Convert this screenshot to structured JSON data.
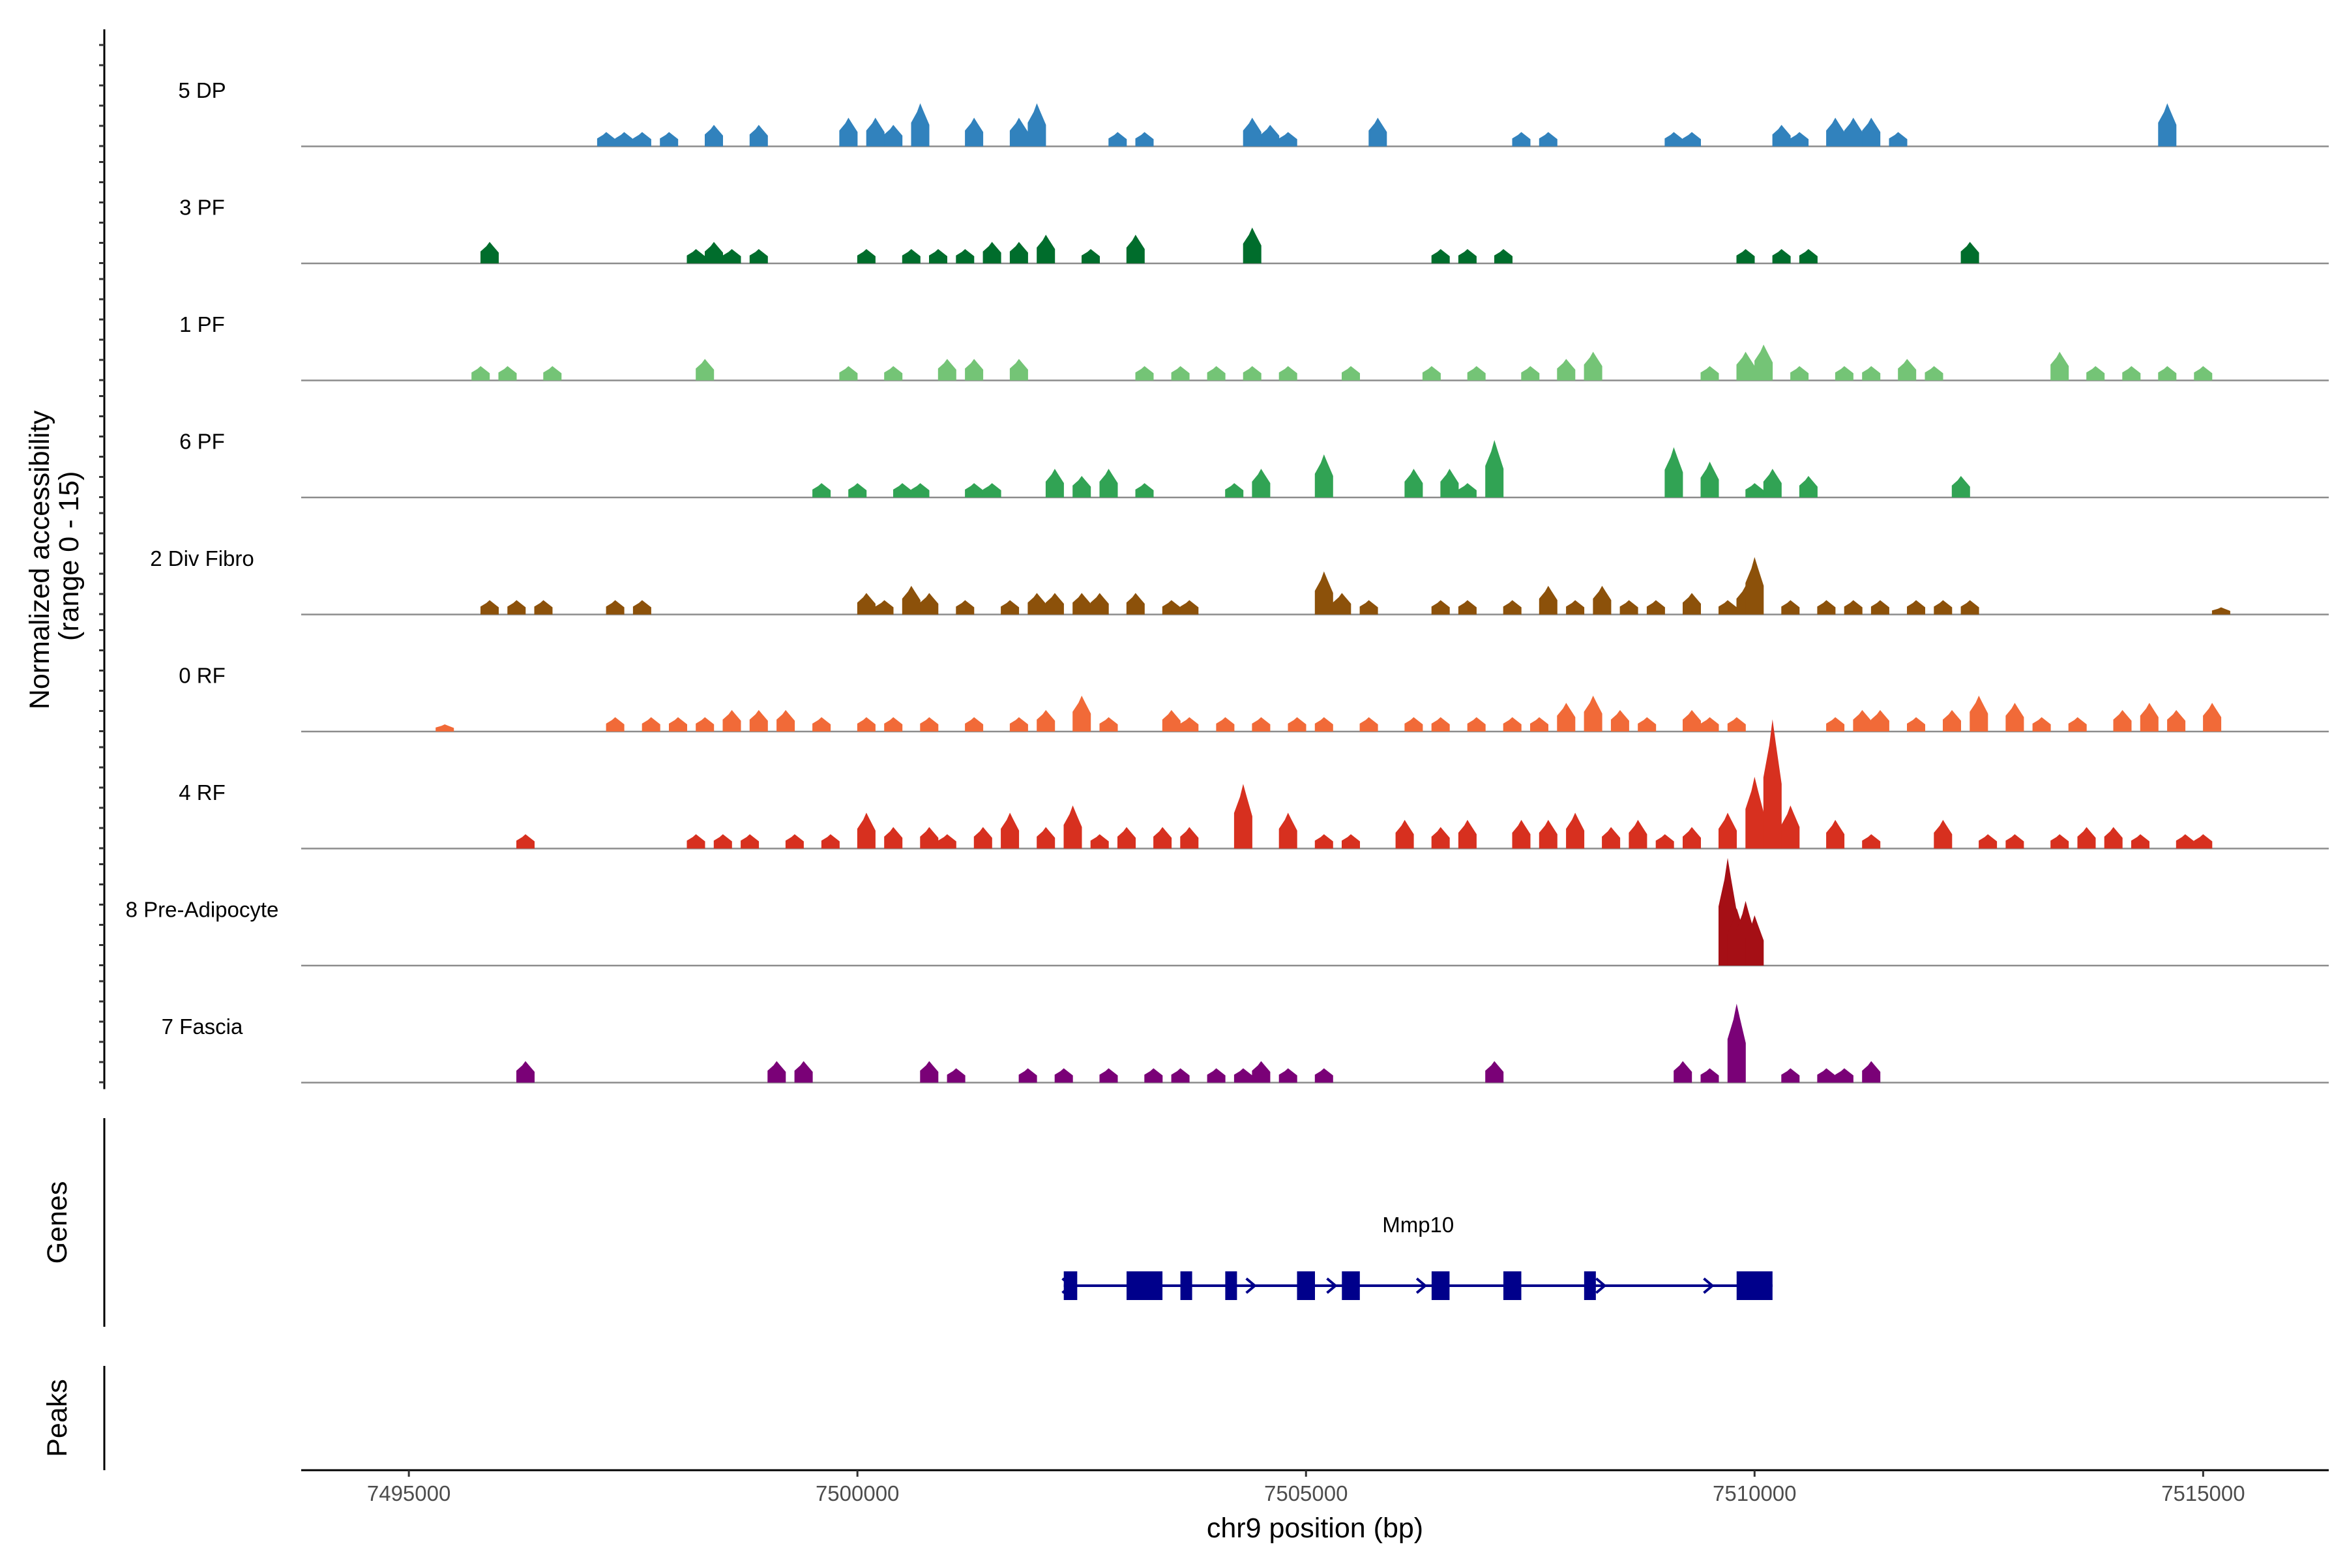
{
  "chart_data": {
    "type": "genome-coverage",
    "y_axis_title_line1": "Normalized accessibility",
    "y_axis_title_line2": "(range 0 - 15)",
    "x_axis_title": "chr9 position (bp)",
    "xlim": [
      7493800,
      7516400
    ],
    "x_ticks": [
      {
        "value": 7495000,
        "label": "7495000"
      },
      {
        "value": 7500000,
        "label": "7500000"
      },
      {
        "value": 7505000,
        "label": "7505000"
      },
      {
        "value": 7510000,
        "label": "7510000"
      },
      {
        "value": 7515000,
        "label": "7515000"
      }
    ],
    "track_max": 15,
    "tracks": [
      {
        "name": "5 DP",
        "color": "#3182bd",
        "peaks": [
          [
            7497200,
            2
          ],
          [
            7497400,
            2
          ],
          [
            7497600,
            2
          ],
          [
            7497900,
            2
          ],
          [
            7498400,
            3
          ],
          [
            7498900,
            3
          ],
          [
            7499900,
            4
          ],
          [
            7500200,
            4
          ],
          [
            7500400,
            3
          ],
          [
            7500700,
            6
          ],
          [
            7501300,
            4
          ],
          [
            7501800,
            4
          ],
          [
            7502000,
            6
          ],
          [
            7502900,
            2
          ],
          [
            7503200,
            2
          ],
          [
            7504400,
            4
          ],
          [
            7504600,
            3
          ],
          [
            7504800,
            2
          ],
          [
            7505800,
            4
          ],
          [
            7507400,
            2
          ],
          [
            7507700,
            2
          ],
          [
            7509100,
            2
          ],
          [
            7509300,
            2
          ],
          [
            7510300,
            3
          ],
          [
            7510500,
            2
          ],
          [
            7510900,
            4
          ],
          [
            7511100,
            4
          ],
          [
            7511300,
            4
          ],
          [
            7511600,
            2
          ],
          [
            7514600,
            6
          ]
        ]
      },
      {
        "name": "3 PF",
        "color": "#006d2c",
        "peaks": [
          [
            7495900,
            3
          ],
          [
            7498200,
            2
          ],
          [
            7498400,
            3
          ],
          [
            7498600,
            2
          ],
          [
            7498900,
            2
          ],
          [
            7500100,
            2
          ],
          [
            7500600,
            2
          ],
          [
            7500900,
            2
          ],
          [
            7501200,
            2
          ],
          [
            7501500,
            3
          ],
          [
            7501800,
            3
          ],
          [
            7502100,
            4
          ],
          [
            7502600,
            2
          ],
          [
            7503100,
            4
          ],
          [
            7504400,
            5
          ],
          [
            7506500,
            2
          ],
          [
            7506800,
            2
          ],
          [
            7507200,
            2
          ],
          [
            7509900,
            2
          ],
          [
            7510300,
            2
          ],
          [
            7510600,
            2
          ],
          [
            7512400,
            3
          ]
        ]
      },
      {
        "name": "1 PF",
        "color": "#74c476",
        "peaks": [
          [
            7495800,
            2
          ],
          [
            7496100,
            2
          ],
          [
            7496600,
            2
          ],
          [
            7498300,
            3
          ],
          [
            7499900,
            2
          ],
          [
            7500400,
            2
          ],
          [
            7501000,
            3
          ],
          [
            7501300,
            3
          ],
          [
            7501800,
            3
          ],
          [
            7503200,
            2
          ],
          [
            7503600,
            2
          ],
          [
            7504000,
            2
          ],
          [
            7504400,
            2
          ],
          [
            7504800,
            2
          ],
          [
            7505500,
            2
          ],
          [
            7506400,
            2
          ],
          [
            7506900,
            2
          ],
          [
            7507500,
            2
          ],
          [
            7507900,
            3
          ],
          [
            7508200,
            4
          ],
          [
            7509500,
            2
          ],
          [
            7509900,
            4
          ],
          [
            7510100,
            5
          ],
          [
            7510500,
            2
          ],
          [
            7511000,
            2
          ],
          [
            7511300,
            2
          ],
          [
            7511700,
            3
          ],
          [
            7512000,
            2
          ],
          [
            7513400,
            4
          ],
          [
            7513800,
            2
          ],
          [
            7514200,
            2
          ],
          [
            7514600,
            2
          ],
          [
            7515000,
            2
          ]
        ]
      },
      {
        "name": "6 PF",
        "color": "#31a354",
        "peaks": [
          [
            7499600,
            2
          ],
          [
            7500000,
            2
          ],
          [
            7500500,
            2
          ],
          [
            7500700,
            2
          ],
          [
            7501300,
            2
          ],
          [
            7501500,
            2
          ],
          [
            7502200,
            4
          ],
          [
            7502500,
            3
          ],
          [
            7502800,
            4
          ],
          [
            7503200,
            2
          ],
          [
            7504200,
            2
          ],
          [
            7504500,
            4
          ],
          [
            7505200,
            6
          ],
          [
            7506200,
            4
          ],
          [
            7506600,
            4
          ],
          [
            7506800,
            2
          ],
          [
            7507100,
            8
          ],
          [
            7509100,
            7
          ],
          [
            7509500,
            5
          ],
          [
            7510000,
            2
          ],
          [
            7510200,
            4
          ],
          [
            7510600,
            3
          ],
          [
            7512300,
            3
          ]
        ]
      },
      {
        "name": "2 Div Fibro",
        "color": "#8c510a",
        "peaks": [
          [
            7495900,
            2
          ],
          [
            7496200,
            2
          ],
          [
            7496500,
            2
          ],
          [
            7497300,
            2
          ],
          [
            7497600,
            2
          ],
          [
            7500100,
            3
          ],
          [
            7500300,
            2
          ],
          [
            7500600,
            4
          ],
          [
            7500800,
            3
          ],
          [
            7501200,
            2
          ],
          [
            7501700,
            2
          ],
          [
            7502000,
            3
          ],
          [
            7502200,
            3
          ],
          [
            7502500,
            3
          ],
          [
            7502700,
            3
          ],
          [
            7503100,
            3
          ],
          [
            7503500,
            2
          ],
          [
            7503700,
            2
          ],
          [
            7505200,
            6
          ],
          [
            7505400,
            3
          ],
          [
            7505700,
            2
          ],
          [
            7506500,
            2
          ],
          [
            7506800,
            2
          ],
          [
            7507300,
            2
          ],
          [
            7507700,
            4
          ],
          [
            7508000,
            2
          ],
          [
            7508300,
            4
          ],
          [
            7508600,
            2
          ],
          [
            7508900,
            2
          ],
          [
            7509300,
            3
          ],
          [
            7509700,
            2
          ],
          [
            7509900,
            4
          ],
          [
            7510000,
            8
          ],
          [
            7510400,
            2
          ],
          [
            7510800,
            2
          ],
          [
            7511100,
            2
          ],
          [
            7511400,
            2
          ],
          [
            7511800,
            2
          ],
          [
            7512100,
            2
          ],
          [
            7512400,
            2
          ],
          [
            7515200,
            1
          ]
        ]
      },
      {
        "name": "0 RF",
        "color": "#f16a38",
        "peaks": [
          [
            7495400,
            1
          ],
          [
            7497300,
            2
          ],
          [
            7497700,
            2
          ],
          [
            7498000,
            2
          ],
          [
            7498300,
            2
          ],
          [
            7498600,
            3
          ],
          [
            7498900,
            3
          ],
          [
            7499200,
            3
          ],
          [
            7499600,
            2
          ],
          [
            7500100,
            2
          ],
          [
            7500400,
            2
          ],
          [
            7500800,
            2
          ],
          [
            7501300,
            2
          ],
          [
            7501800,
            2
          ],
          [
            7502100,
            3
          ],
          [
            7502500,
            5
          ],
          [
            7502800,
            2
          ],
          [
            7503500,
            3
          ],
          [
            7503700,
            2
          ],
          [
            7504100,
            2
          ],
          [
            7504500,
            2
          ],
          [
            7504900,
            2
          ],
          [
            7505200,
            2
          ],
          [
            7505700,
            2
          ],
          [
            7506200,
            2
          ],
          [
            7506500,
            2
          ],
          [
            7506900,
            2
          ],
          [
            7507300,
            2
          ],
          [
            7507600,
            2
          ],
          [
            7507900,
            4
          ],
          [
            7508200,
            5
          ],
          [
            7508500,
            3
          ],
          [
            7508800,
            2
          ],
          [
            7509300,
            3
          ],
          [
            7509500,
            2
          ],
          [
            7509800,
            2
          ],
          [
            7510900,
            2
          ],
          [
            7511200,
            3
          ],
          [
            7511400,
            3
          ],
          [
            7511800,
            2
          ],
          [
            7512200,
            3
          ],
          [
            7512500,
            5
          ],
          [
            7512900,
            4
          ],
          [
            7513200,
            2
          ],
          [
            7513600,
            2
          ],
          [
            7514100,
            3
          ],
          [
            7514400,
            4
          ],
          [
            7514700,
            3
          ],
          [
            7515100,
            4
          ]
        ]
      },
      {
        "name": "4 RF",
        "color": "#d7301f",
        "peaks": [
          [
            7496300,
            2
          ],
          [
            7498200,
            2
          ],
          [
            7498500,
            2
          ],
          [
            7498800,
            2
          ],
          [
            7499300,
            2
          ],
          [
            7499700,
            2
          ],
          [
            7500100,
            5
          ],
          [
            7500400,
            3
          ],
          [
            7500800,
            3
          ],
          [
            7501000,
            2
          ],
          [
            7501400,
            3
          ],
          [
            7501700,
            5
          ],
          [
            7502100,
            3
          ],
          [
            7502400,
            6
          ],
          [
            7502700,
            2
          ],
          [
            7503000,
            3
          ],
          [
            7503400,
            3
          ],
          [
            7503700,
            3
          ],
          [
            7504300,
            9
          ],
          [
            7504800,
            5
          ],
          [
            7505200,
            2
          ],
          [
            7505500,
            2
          ],
          [
            7506100,
            4
          ],
          [
            7506500,
            3
          ],
          [
            7506800,
            4
          ],
          [
            7507400,
            4
          ],
          [
            7507700,
            4
          ],
          [
            7508000,
            5
          ],
          [
            7508400,
            3
          ],
          [
            7508700,
            4
          ],
          [
            7509000,
            2
          ],
          [
            7509300,
            3
          ],
          [
            7509700,
            5
          ],
          [
            7510000,
            10
          ],
          [
            7510200,
            18
          ],
          [
            7510400,
            6
          ],
          [
            7510900,
            4
          ],
          [
            7511300,
            2
          ],
          [
            7512100,
            4
          ],
          [
            7512600,
            2
          ],
          [
            7512900,
            2
          ],
          [
            7513400,
            2
          ],
          [
            7513700,
            3
          ],
          [
            7514000,
            3
          ],
          [
            7514300,
            2
          ],
          [
            7514800,
            2
          ],
          [
            7515000,
            2
          ]
        ]
      },
      {
        "name": "8 Pre-Adipocyte",
        "color": "#a50f15",
        "peaks": [
          [
            7509700,
            15
          ],
          [
            7509800,
            8
          ],
          [
            7509900,
            9
          ],
          [
            7510000,
            7
          ]
        ]
      },
      {
        "name": "7 Fascia",
        "color": "#7a0177",
        "peaks": [
          [
            7496300,
            3
          ],
          [
            7499100,
            3
          ],
          [
            7499400,
            3
          ],
          [
            7500800,
            3
          ],
          [
            7501100,
            2
          ],
          [
            7501900,
            2
          ],
          [
            7502300,
            2
          ],
          [
            7502800,
            2
          ],
          [
            7503300,
            2
          ],
          [
            7503600,
            2
          ],
          [
            7504000,
            2
          ],
          [
            7504300,
            2
          ],
          [
            7504500,
            3
          ],
          [
            7504800,
            2
          ],
          [
            7505200,
            2
          ],
          [
            7507100,
            3
          ],
          [
            7509200,
            3
          ],
          [
            7509500,
            2
          ],
          [
            7509800,
            11
          ],
          [
            7510400,
            2
          ],
          [
            7510800,
            2
          ],
          [
            7511000,
            2
          ],
          [
            7511300,
            3
          ]
        ]
      }
    ],
    "genes_panel_label": "Genes",
    "peaks_panel_label": "Peaks",
    "gene": {
      "name": "Mmp10",
      "color": "#00008b",
      "start": 7502300,
      "end": 7510200,
      "exons": [
        [
          7502300,
          7502450
        ],
        [
          7503000,
          7503400
        ],
        [
          7503600,
          7503700
        ],
        [
          7504100,
          7504200
        ],
        [
          7504900,
          7505100
        ],
        [
          7505400,
          7505600
        ],
        [
          7506400,
          7506600
        ],
        [
          7507200,
          7507400
        ],
        [
          7508100,
          7508200
        ],
        [
          7509800,
          7510200
        ]
      ],
      "arrows": [
        7502350,
        7504400,
        7505300,
        7506300,
        7508300,
        7509500
      ]
    }
  }
}
